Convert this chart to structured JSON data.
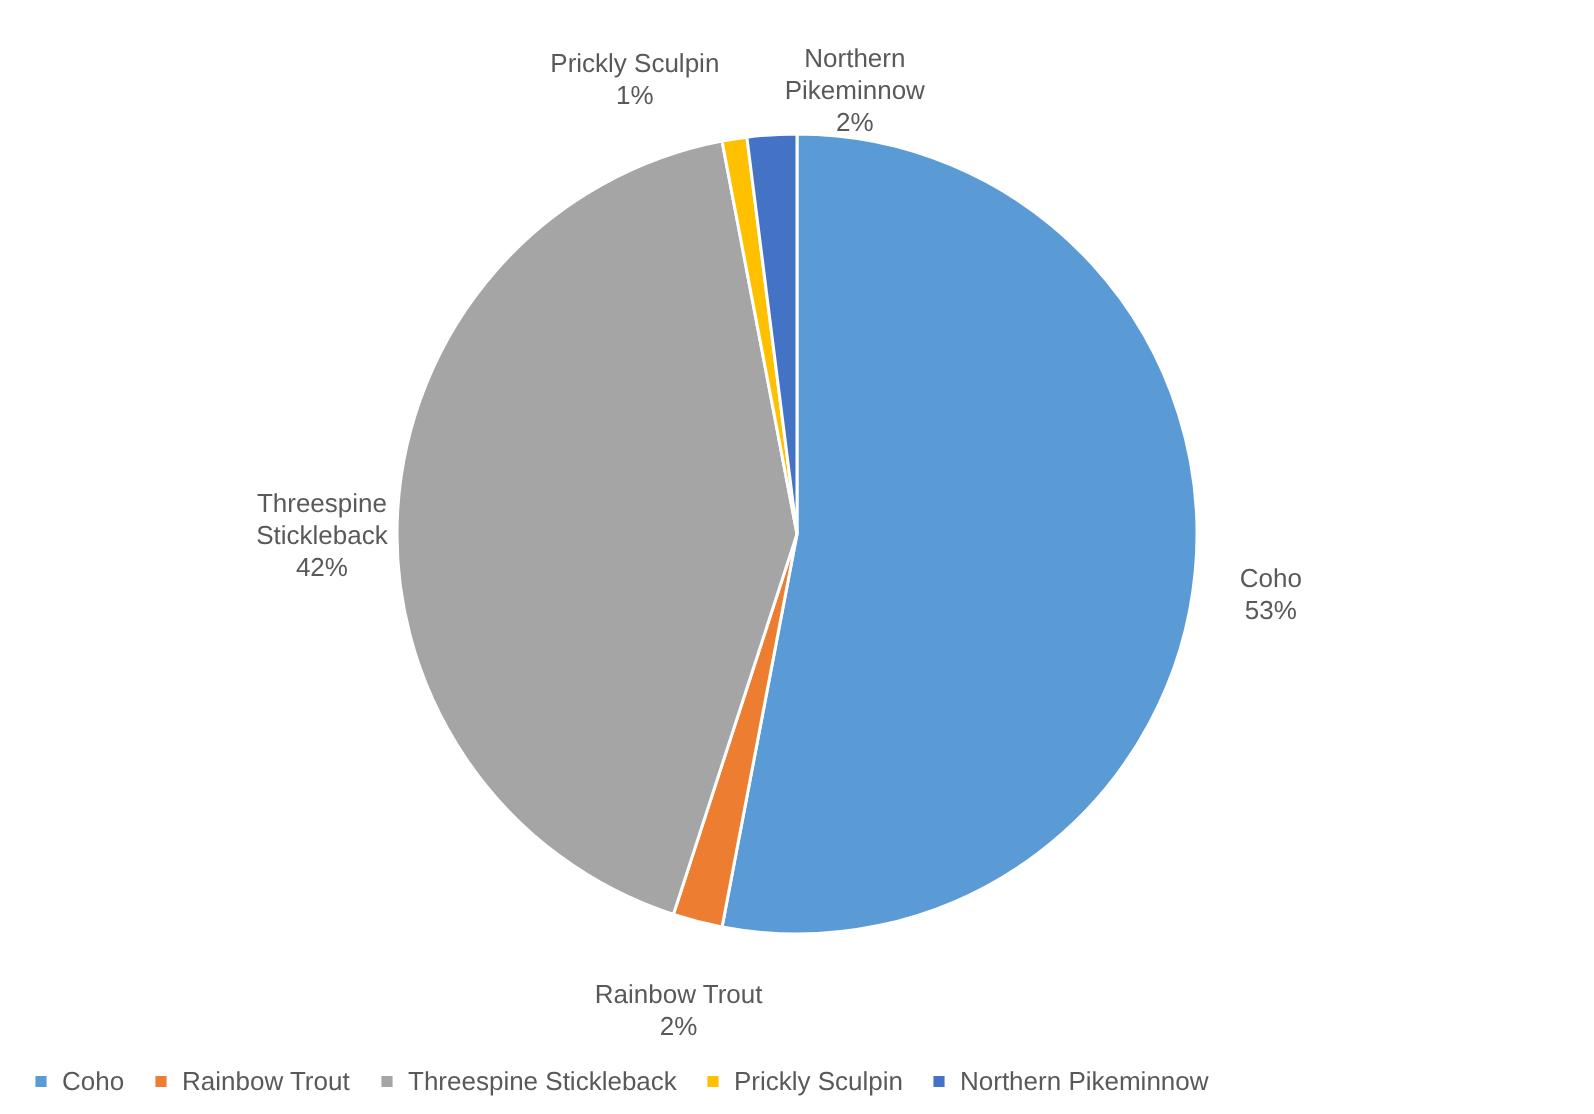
{
  "chart_data": {
    "type": "pie",
    "categories": [
      "Coho",
      "Rainbow Trout",
      "Threespine Stickleback",
      "Prickly Sculpin",
      "Northern Pikeminnow"
    ],
    "values": [
      53,
      2,
      42,
      1,
      2
    ],
    "value_labels": [
      "53%",
      "2%",
      "42%",
      "1%",
      "2%"
    ],
    "colors": [
      "#5b9bd5",
      "#ed7d31",
      "#a5a5a5",
      "#ffc000",
      "#4472c4"
    ],
    "legend": "bottom"
  }
}
